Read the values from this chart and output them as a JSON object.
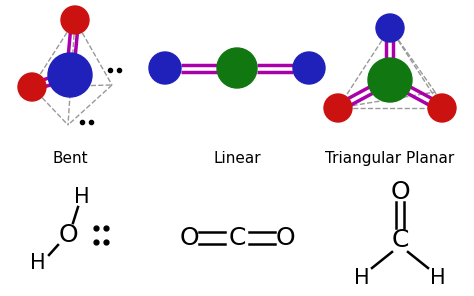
{
  "bg_color": "#ffffff",
  "bent_label": "Bent",
  "linear_label": "Linear",
  "triangular_label": "Triangular Planar",
  "color_blue": "#2020bb",
  "color_red": "#cc1111",
  "color_green": "#117711",
  "color_purple": "#aa00aa",
  "color_gray_dash": "#999999",
  "color_black": "#000000",
  "figsize": [
    4.74,
    2.96
  ],
  "dpi": 100
}
